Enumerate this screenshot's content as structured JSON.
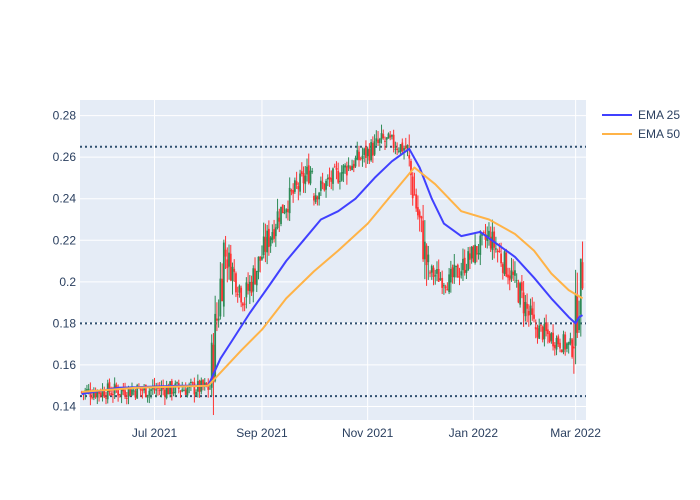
{
  "colors": {
    "plot_bg": "#e5ecf6",
    "grid": "#ffffff",
    "text": "#2a3f5f",
    "candle_up": "#2e8b57",
    "candle_down": "#ff3333",
    "ema25": "#4040ff",
    "ema50": "#ffb347",
    "hline": "#2f4f6f"
  },
  "legend": [
    {
      "name": "EMA 25",
      "color": "#4040ff"
    },
    {
      "name": "EMA 50",
      "color": "#ffb347"
    }
  ],
  "chart_data": {
    "type": "candlestick",
    "x_ticks": [
      "Jul 2021",
      "Sep 2021",
      "Nov 2021",
      "Jan 2022",
      "Mar 2022"
    ],
    "y_ticks": [
      "0.14",
      "0.16",
      "0.18",
      "0.2",
      "0.22",
      "0.24",
      "0.26",
      "0.28"
    ],
    "ylim": [
      0.1335,
      0.2875
    ],
    "xlim": [
      "2021-05-19",
      "2022-03-07"
    ],
    "grid": true,
    "legend_position": "top-right",
    "horizontal_lines": [
      0.145,
      0.18,
      0.265
    ],
    "segments": [
      {
        "from": "2021-05-20",
        "to": "2021-08-02",
        "o": 0.147,
        "c": 0.149
      },
      {
        "from": "2021-08-03",
        "to": "2021-08-10",
        "o": 0.15,
        "c": 0.215
      },
      {
        "from": "2021-08-11",
        "to": "2021-08-22",
        "o": 0.215,
        "c": 0.192
      },
      {
        "from": "2021-08-23",
        "to": "2021-09-10",
        "o": 0.192,
        "c": 0.232
      },
      {
        "from": "2021-09-11",
        "to": "2021-09-30",
        "o": 0.232,
        "c": 0.255
      },
      {
        "from": "2021-10-01",
        "to": "2021-10-20",
        "o": 0.242,
        "c": 0.255
      },
      {
        "from": "2021-10-21",
        "to": "2021-11-10",
        "o": 0.255,
        "c": 0.268
      },
      {
        "from": "2021-11-11",
        "to": "2021-11-24",
        "o": 0.268,
        "c": 0.264
      },
      {
        "from": "2021-11-25",
        "to": "2021-12-06",
        "o": 0.26,
        "c": 0.205
      },
      {
        "from": "2021-12-07",
        "to": "2021-12-18",
        "o": 0.205,
        "c": 0.2
      },
      {
        "from": "2021-12-19",
        "to": "2022-01-10",
        "o": 0.2,
        "c": 0.222
      },
      {
        "from": "2022-01-11",
        "to": "2022-01-25",
        "o": 0.222,
        "c": 0.2
      },
      {
        "from": "2022-01-26",
        "to": "2022-02-05",
        "o": 0.2,
        "c": 0.178
      },
      {
        "from": "2022-02-06",
        "to": "2022-02-27",
        "o": 0.178,
        "c": 0.168
      },
      {
        "from": "2022-02-28",
        "to": "2022-03-05",
        "o": 0.17,
        "c": 0.205
      }
    ],
    "series": [
      {
        "name": "EMA 25",
        "points": [
          [
            "2021-05-20",
            0.146
          ],
          [
            "2021-06-10",
            0.149
          ],
          [
            "2021-07-15",
            0.15
          ],
          [
            "2021-08-01",
            0.15
          ],
          [
            "2021-08-08",
            0.163
          ],
          [
            "2021-08-15",
            0.172
          ],
          [
            "2021-08-25",
            0.185
          ],
          [
            "2021-09-05",
            0.198
          ],
          [
            "2021-09-15",
            0.21
          ],
          [
            "2021-09-25",
            0.22
          ],
          [
            "2021-10-05",
            0.23
          ],
          [
            "2021-10-15",
            0.234
          ],
          [
            "2021-10-25",
            0.24
          ],
          [
            "2021-11-05",
            0.25
          ],
          [
            "2021-11-15",
            0.258
          ],
          [
            "2021-11-25",
            0.264
          ],
          [
            "2021-12-01",
            0.255
          ],
          [
            "2021-12-08",
            0.24
          ],
          [
            "2021-12-15",
            0.228
          ],
          [
            "2021-12-25",
            0.222
          ],
          [
            "2022-01-05",
            0.224
          ],
          [
            "2022-01-15",
            0.218
          ],
          [
            "2022-01-25",
            0.212
          ],
          [
            "2022-02-05",
            0.202
          ],
          [
            "2022-02-15",
            0.192
          ],
          [
            "2022-02-25",
            0.183
          ],
          [
            "2022-03-01",
            0.18
          ],
          [
            "2022-03-03",
            0.183
          ],
          [
            "2022-03-05",
            0.184
          ]
        ]
      },
      {
        "name": "EMA 50",
        "points": [
          [
            "2021-05-20",
            0.147
          ],
          [
            "2021-06-20",
            0.149
          ],
          [
            "2021-08-01",
            0.15
          ],
          [
            "2021-08-10",
            0.158
          ],
          [
            "2021-08-20",
            0.167
          ],
          [
            "2021-09-01",
            0.177
          ],
          [
            "2021-09-15",
            0.192
          ],
          [
            "2021-10-01",
            0.205
          ],
          [
            "2021-10-15",
            0.215
          ],
          [
            "2021-11-01",
            0.228
          ],
          [
            "2021-11-15",
            0.242
          ],
          [
            "2021-11-28",
            0.255
          ],
          [
            "2021-12-10",
            0.247
          ],
          [
            "2021-12-25",
            0.234
          ],
          [
            "2022-01-10",
            0.23
          ],
          [
            "2022-01-25",
            0.223
          ],
          [
            "2022-02-05",
            0.215
          ],
          [
            "2022-02-15",
            0.204
          ],
          [
            "2022-02-25",
            0.196
          ],
          [
            "2022-03-05",
            0.192
          ]
        ]
      }
    ]
  }
}
